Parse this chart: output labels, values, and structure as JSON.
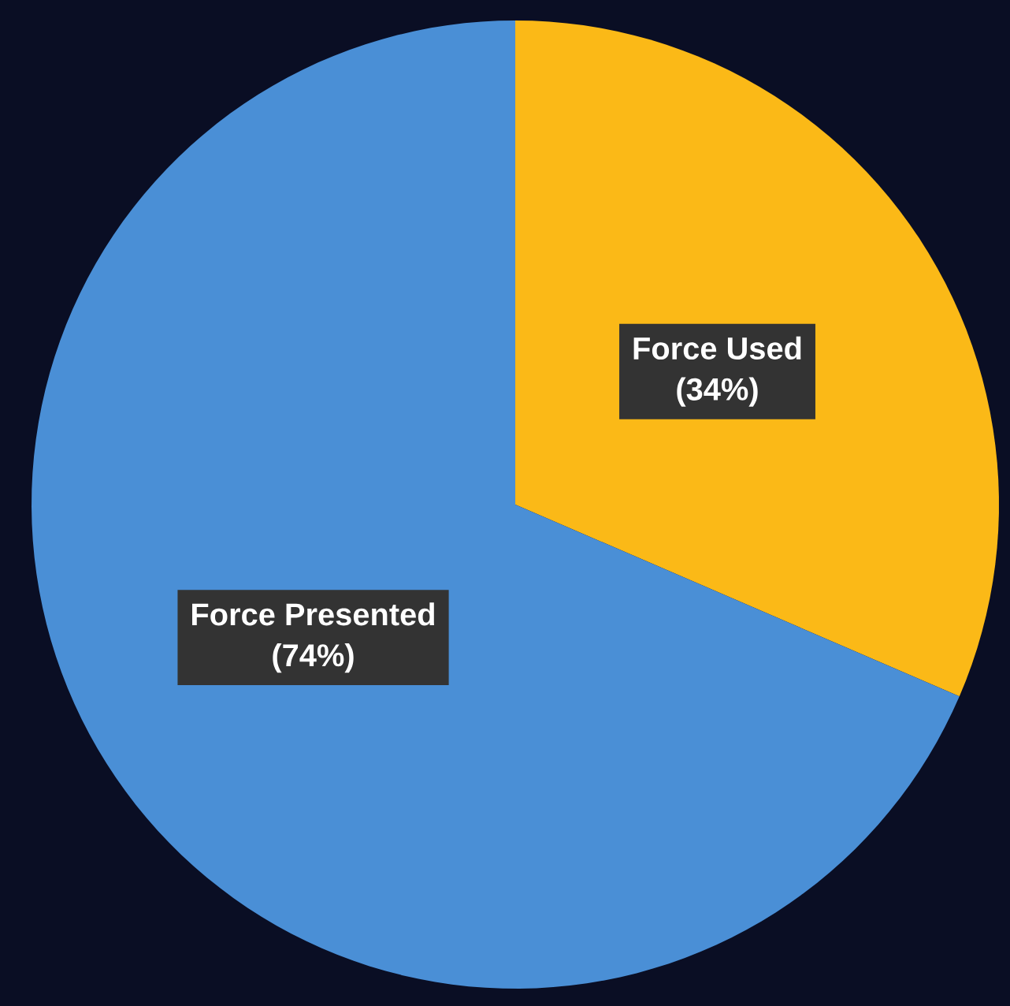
{
  "chart_data": {
    "type": "pie",
    "categories": [
      "Force Used",
      "Force Presented"
    ],
    "values": [
      34,
      74
    ],
    "colors": [
      "#fbb917",
      "#4a8fd6"
    ],
    "value_labels": [
      "(34%)",
      "(74%)"
    ]
  }
}
